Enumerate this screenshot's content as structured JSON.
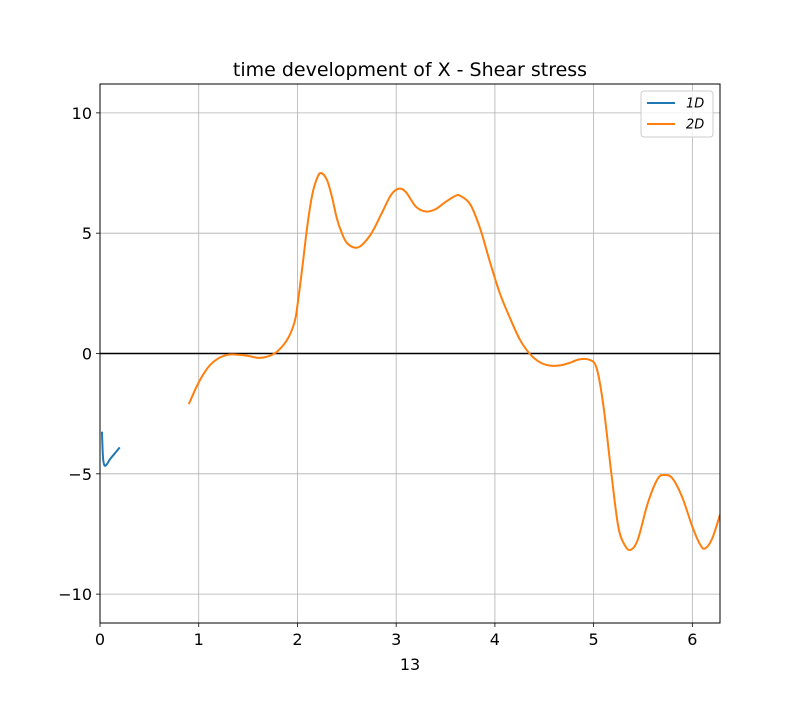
{
  "chart_data": {
    "type": "line",
    "title": "time development of X - Shear stress",
    "xlabel": "13",
    "ylabel": "",
    "xlim": [
      0,
      6.28
    ],
    "ylim": [
      -11.2,
      11.2
    ],
    "xticks": [
      0,
      1,
      2,
      3,
      4,
      5,
      6
    ],
    "xtick_labels": [
      "0",
      "1",
      "2",
      "3",
      "4",
      "5",
      "6"
    ],
    "yticks": [
      -10,
      -5,
      0,
      5,
      10
    ],
    "ytick_labels": [
      "−10",
      "−5",
      "0",
      "5",
      "10"
    ],
    "grid": true,
    "zero_line": true,
    "legend_position": "top-right",
    "series": [
      {
        "name": "1D",
        "color": "#1f77b4",
        "points": [
          [
            0.02,
            -3.25
          ],
          [
            0.03,
            -4.3
          ],
          [
            0.045,
            -4.65
          ],
          [
            0.07,
            -4.6
          ],
          [
            0.1,
            -4.4
          ],
          [
            0.14,
            -4.2
          ],
          [
            0.17,
            -4.05
          ],
          [
            0.2,
            -3.9
          ]
        ]
      },
      {
        "name": "2D",
        "color": "#ff7f0e",
        "points": [
          [
            0.9,
            -2.1
          ],
          [
            1.0,
            -1.2
          ],
          [
            1.1,
            -0.55
          ],
          [
            1.2,
            -0.2
          ],
          [
            1.3,
            -0.05
          ],
          [
            1.4,
            -0.05
          ],
          [
            1.5,
            -0.1
          ],
          [
            1.6,
            -0.18
          ],
          [
            1.7,
            -0.12
          ],
          [
            1.8,
            0.1
          ],
          [
            1.9,
            0.6
          ],
          [
            1.97,
            1.3
          ],
          [
            2.0,
            2.0
          ],
          [
            2.05,
            3.6
          ],
          [
            2.1,
            5.3
          ],
          [
            2.15,
            6.6
          ],
          [
            2.2,
            7.3
          ],
          [
            2.24,
            7.5
          ],
          [
            2.3,
            7.2
          ],
          [
            2.35,
            6.5
          ],
          [
            2.4,
            5.6
          ],
          [
            2.45,
            5.0
          ],
          [
            2.5,
            4.6
          ],
          [
            2.58,
            4.4
          ],
          [
            2.65,
            4.5
          ],
          [
            2.75,
            5.0
          ],
          [
            2.85,
            5.8
          ],
          [
            2.95,
            6.6
          ],
          [
            3.03,
            6.85
          ],
          [
            3.1,
            6.7
          ],
          [
            3.2,
            6.1
          ],
          [
            3.3,
            5.9
          ],
          [
            3.4,
            6.0
          ],
          [
            3.5,
            6.3
          ],
          [
            3.6,
            6.55
          ],
          [
            3.65,
            6.55
          ],
          [
            3.75,
            6.2
          ],
          [
            3.85,
            5.2
          ],
          [
            3.95,
            3.8
          ],
          [
            4.05,
            2.5
          ],
          [
            4.15,
            1.5
          ],
          [
            4.25,
            0.6
          ],
          [
            4.35,
            0.0
          ],
          [
            4.45,
            -0.35
          ],
          [
            4.55,
            -0.5
          ],
          [
            4.65,
            -0.5
          ],
          [
            4.75,
            -0.4
          ],
          [
            4.85,
            -0.25
          ],
          [
            4.95,
            -0.25
          ],
          [
            5.03,
            -0.6
          ],
          [
            5.1,
            -2.2
          ],
          [
            5.18,
            -5.0
          ],
          [
            5.25,
            -7.2
          ],
          [
            5.32,
            -8.0
          ],
          [
            5.38,
            -8.15
          ],
          [
            5.45,
            -7.7
          ],
          [
            5.55,
            -6.2
          ],
          [
            5.65,
            -5.2
          ],
          [
            5.72,
            -5.05
          ],
          [
            5.8,
            -5.2
          ],
          [
            5.9,
            -6.0
          ],
          [
            6.0,
            -7.2
          ],
          [
            6.08,
            -7.95
          ],
          [
            6.13,
            -8.1
          ],
          [
            6.2,
            -7.7
          ],
          [
            6.28,
            -6.7
          ]
        ]
      }
    ]
  }
}
